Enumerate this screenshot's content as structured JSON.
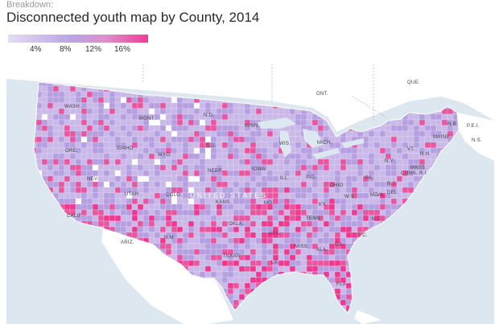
{
  "breakdown_label": "Breakdown:",
  "title": "Disconnected youth map by County, 2014",
  "legend": {
    "ticks": [
      "4%",
      "8%",
      "12%",
      "16%"
    ],
    "color_low": "#e4ddf2",
    "color_high": "#ee3d96"
  },
  "map": {
    "country_label": "UNITED STATES",
    "canada_labels": [
      "ONT.",
      "QUE."
    ],
    "state_labels": [
      "WASH.",
      "MONT.",
      "N.D.",
      "MINN.",
      "ORE.",
      "IDAHO",
      "WYO.",
      "S.D.",
      "WIS.",
      "MICH.",
      "NEBR.",
      "IOWA",
      "NEV.",
      "UTAH",
      "COLO.",
      "KANS.",
      "ILL.",
      "IND.",
      "OHIO",
      "CALIF.",
      "ARIZ.",
      "OKLA.",
      "TENN.",
      "VA.",
      "N.C.",
      "S.C.",
      "GA.",
      "ALA.",
      "MISS.",
      "ARK.",
      "LA.",
      "TEXAS",
      "FLA.",
      "PA.",
      "N.Y.",
      "VT.",
      "N.H.",
      "MAINE",
      "MASS.",
      "CONN.",
      "R.I.",
      "N.J.",
      "MD.",
      "DEL.",
      "W.V.",
      "KY.",
      "MO.",
      "N.M.",
      "N.B.",
      "P.E.I.",
      "N.S."
    ],
    "colors": {
      "ocean": "#dde7f0",
      "land": "#ffffff",
      "low": "#c9b8e8",
      "mid": "#b59fe0",
      "high": "#e8569f",
      "highest": "#f0388f"
    }
  }
}
